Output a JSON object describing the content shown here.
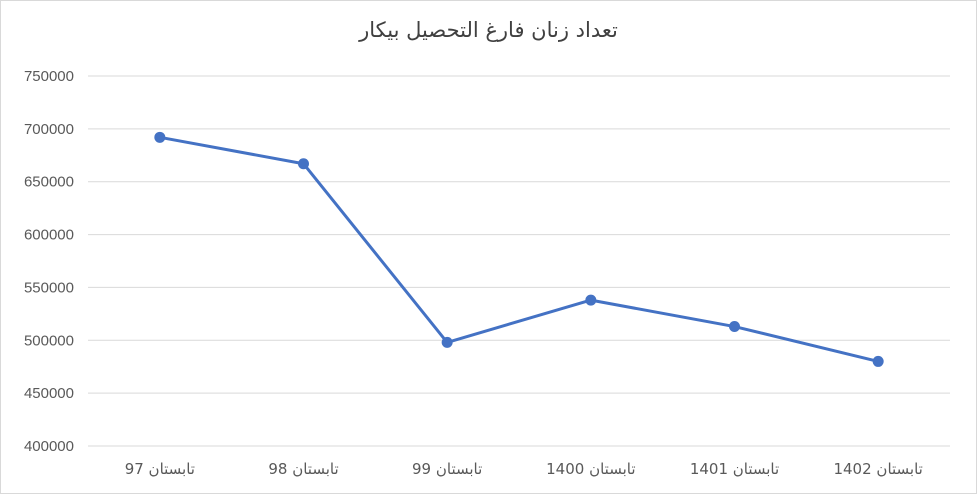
{
  "chart_data": {
    "type": "line",
    "title": "تعداد زنان فارغ التحصیل بیکار",
    "categories": [
      "تابستان 97",
      "تابستان 98",
      "تابستان 99",
      "تابستان 1400",
      "تابستان 1401",
      "تابستان 1402"
    ],
    "series": [
      {
        "values": [
          692000,
          667000,
          498000,
          538000,
          513000,
          480000
        ]
      }
    ],
    "y_ticks": [
      "400000",
      "450000",
      "500000",
      "550000",
      "600000",
      "650000",
      "700000",
      "750000"
    ],
    "ylim": [
      400000,
      750000
    ],
    "grid": true,
    "legend": "none",
    "colors": {
      "series": "#4472c4",
      "grid": "#d9d9d9",
      "text": "#595959"
    }
  }
}
